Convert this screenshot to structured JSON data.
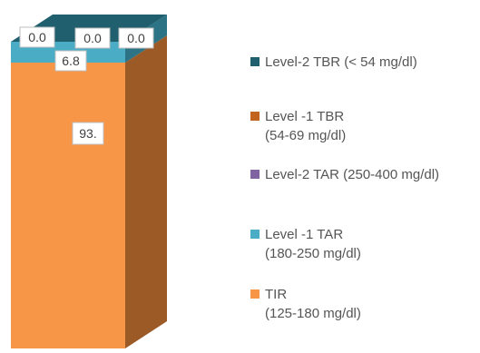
{
  "chart_data": {
    "type": "bar",
    "stacked": true,
    "three_d": true,
    "categories": [
      ""
    ],
    "ylim": [
      0,
      100
    ],
    "series": [
      {
        "name": "TIR\n(125-180 mg/dl)",
        "values": [
          93.2
        ],
        "color": "#f79646",
        "side_color": "#9c5a26",
        "label": "93."
      },
      {
        "name": "Level -1 TAR\n(180-250 mg/dl)",
        "values": [
          6.8
        ],
        "color": "#4bacc6",
        "side_color": "#2c7386",
        "label": "6.8"
      },
      {
        "name": "Level-2 TAR (250-400 mg/dl)",
        "values": [
          0.0
        ],
        "color": "#8064a2",
        "side_color": "#564370",
        "label": "0.0"
      },
      {
        "name": "Level -1 TBR\n(54-69 mg/dl)",
        "values": [
          0.0
        ],
        "color": "#c0641e",
        "side_color": "#7a3f12",
        "label": "0.0"
      },
      {
        "name": "Level-2 TBR (< 54  mg/dl)",
        "values": [
          0.0
        ],
        "color": "#1f5f6e",
        "side_color": "#163f49",
        "label": "0.0"
      }
    ],
    "legend_order": [
      4,
      3,
      2,
      1,
      0
    ],
    "legend_position": "right",
    "grid": false
  }
}
